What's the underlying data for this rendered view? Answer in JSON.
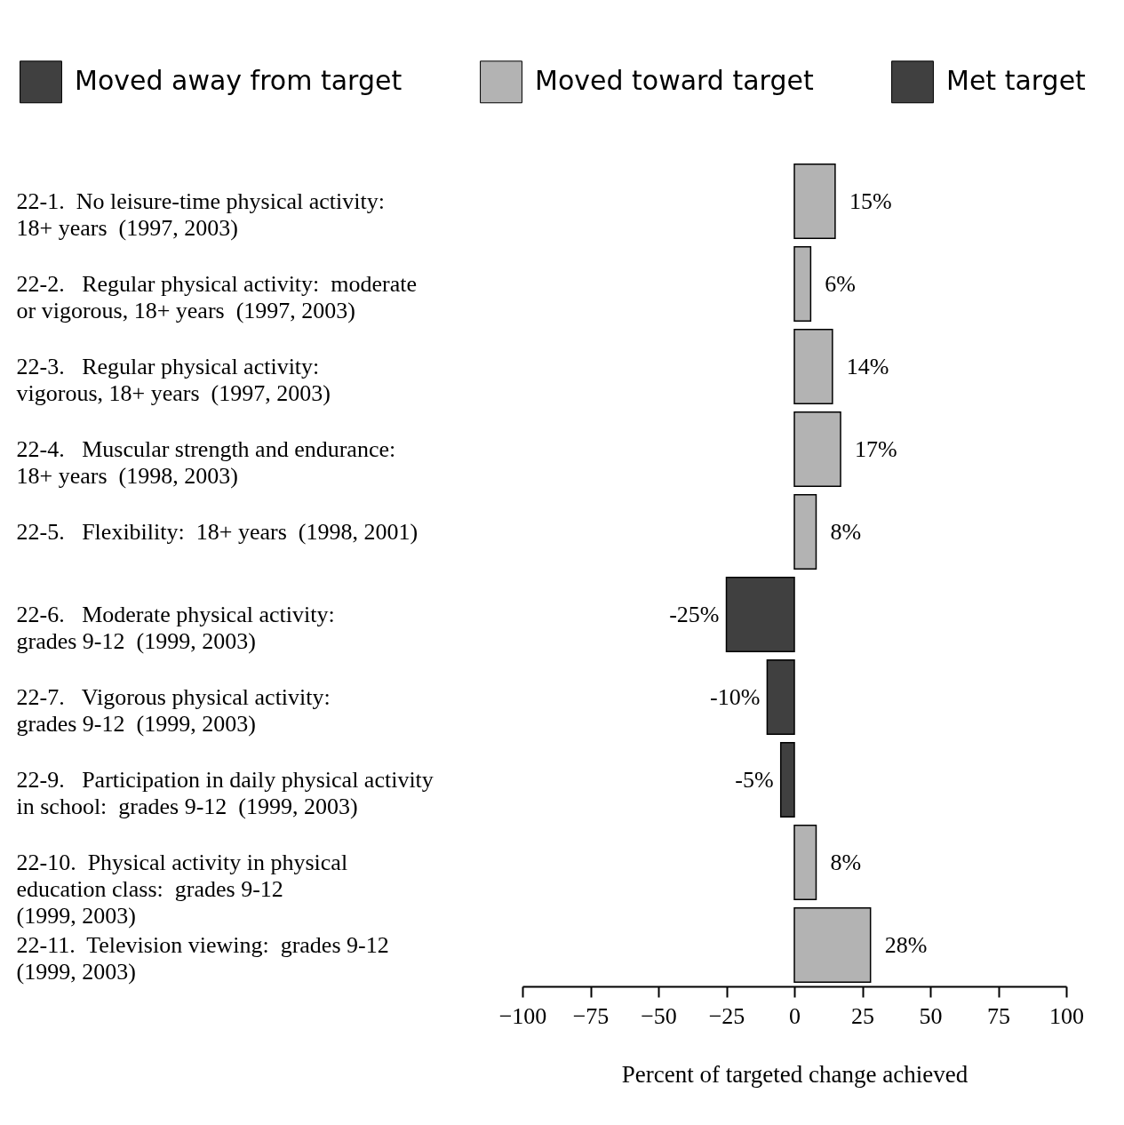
{
  "chart_data": {
    "type": "bar",
    "orientation": "horizontal",
    "stacked": true,
    "xlabel": "Percent of targeted change achieved",
    "categories": [
      "22-1.  No leisure-time physical activity:\n        18+ years  (1997, 2003)",
      "22-2.   Regular physical activity:  moderate\n          or vigorous, 18+ years  (1997, 2003)",
      "22-3.   Regular physical activity:\n          vigorous, 18+ years  (1997, 2003)",
      "22-4.   Muscular strength and endurance:\n          18+ years  (1998, 2003)",
      "22-5.   Flexibility:  18+ years  (1998, 2001)",
      "22-6.   Moderate physical activity:\n          grades 9-12  (1999, 2003)",
      "22-7.   Vigorous physical activity:\n          grades 9-12  (1999, 2003)",
      "22-9.   Participation in daily physical activity\n          in school:  grades 9-12  (1999, 2003)",
      "22-10.  Physical activity in physical\n           education class:  grades 9-12\n           (1999, 2003)",
      "22-11.  Television viewing:  grades 9-12\n           (1999, 2003)"
    ],
    "series": [
      {
        "name": "Moved away from target",
        "color": "#404040",
        "values": [
          null,
          null,
          null,
          null,
          null,
          -25,
          -10,
          -5,
          null,
          null
        ],
        "value_labels": [
          null,
          null,
          null,
          null,
          null,
          "-25%",
          "-10%",
          "-5%",
          null,
          null
        ]
      },
      {
        "name": "Moved toward target",
        "color": "#b3b3b3",
        "values": [
          15,
          6,
          14,
          17,
          8,
          null,
          null,
          null,
          8,
          28
        ],
        "value_labels": [
          "15%",
          "6%",
          "14%",
          "17%",
          "8%",
          null,
          null,
          null,
          "8%",
          "28%"
        ]
      },
      {
        "name": "Met target",
        "color": "#404040",
        "values": [
          null,
          null,
          null,
          null,
          null,
          null,
          null,
          null,
          null,
          null
        ]
      }
    ],
    "xlim": [
      -100,
      100
    ],
    "xticks": [
      -100,
      -75,
      -50,
      -25,
      0,
      25,
      50,
      75,
      100
    ],
    "grid": false,
    "legend": "top"
  }
}
